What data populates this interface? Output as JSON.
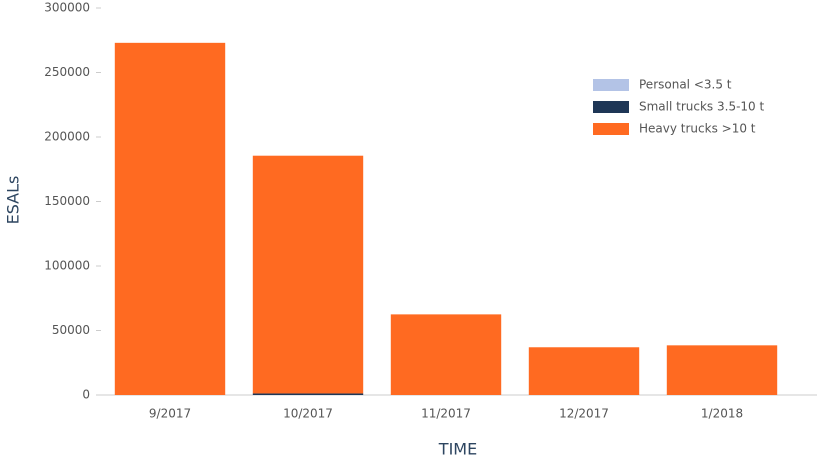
{
  "chart_data": {
    "type": "stacked-bar",
    "x_label": "TIME",
    "y_label": "ESALs",
    "categories": [
      "9/2017",
      "10/2017",
      "11/2017",
      "12/2017",
      "1/2018"
    ],
    "series": [
      {
        "name": "Personal <3.5 t",
        "color": "#b3c3e6",
        "values": [
          0,
          0,
          0,
          0,
          0
        ]
      },
      {
        "name": "Small trucks 3.5-10 t",
        "color": "#1e3656",
        "values": [
          0,
          1200,
          0,
          0,
          0
        ]
      },
      {
        "name": "Heavy trucks >10 t",
        "color": "#ff6a21",
        "values": [
          273000,
          184300,
          62500,
          37000,
          38500
        ]
      }
    ],
    "ylim": [
      0,
      300000
    ],
    "yticks": [
      0,
      50000,
      100000,
      150000,
      200000,
      250000,
      300000
    ],
    "legend": "upper right"
  }
}
